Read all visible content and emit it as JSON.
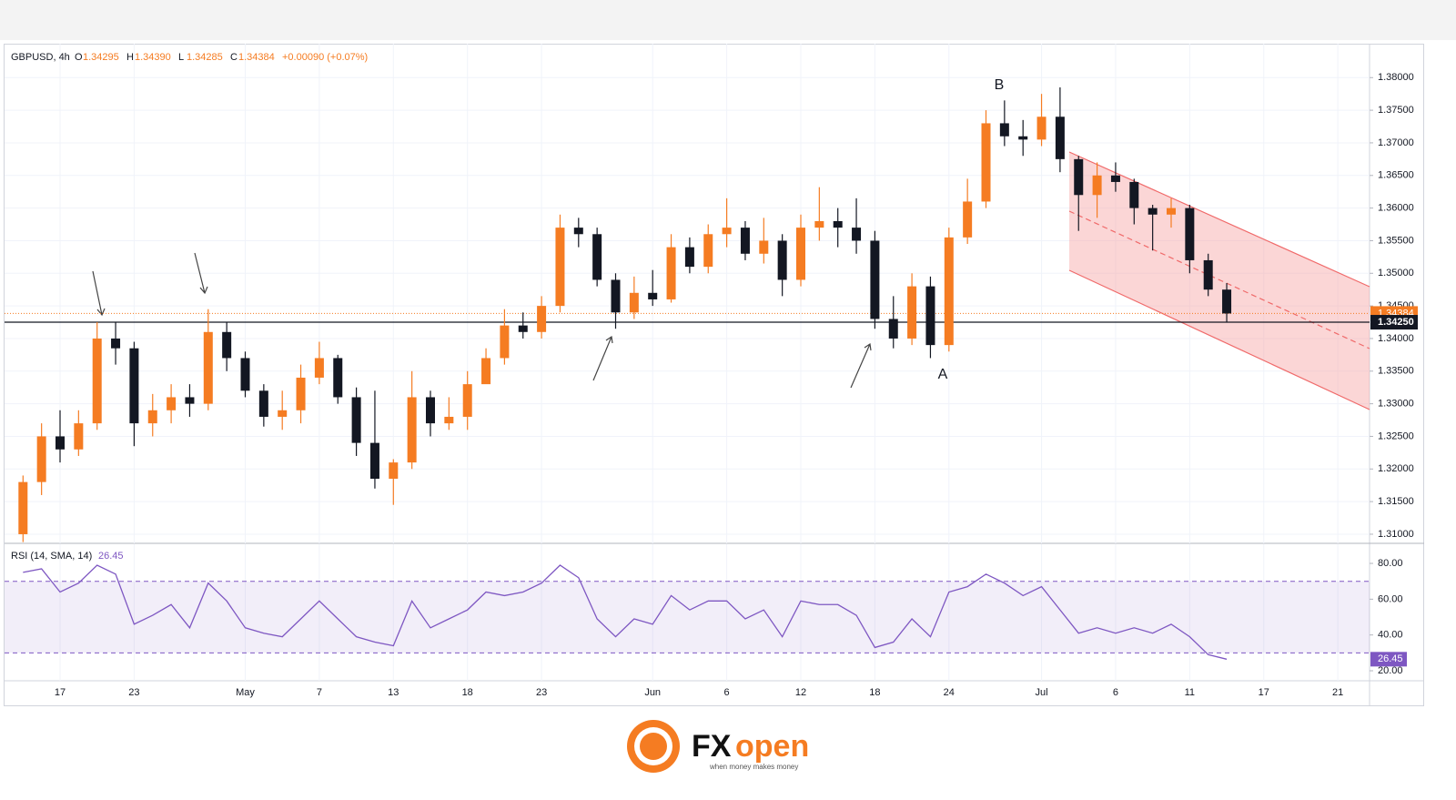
{
  "chart_data": {
    "type": "candlestick",
    "title": "GBPUSD, 4h",
    "ohlc_header": [
      {
        "name": "O",
        "value": "1.34295"
      },
      {
        "name": "H",
        "value": "1.34390"
      },
      {
        "name": "L",
        "value": "1.34285"
      },
      {
        "name": "C",
        "value": "1.34384"
      }
    ],
    "change": "+0.00090 (+0.07%)",
    "annotations": [
      "A",
      "B"
    ],
    "categories": [
      null,
      null,
      "17",
      null,
      null,
      null,
      "23",
      null,
      null,
      null,
      null,
      null,
      "May",
      null,
      null,
      null,
      "7",
      null,
      null,
      null,
      "13",
      null,
      null,
      null,
      "18",
      null,
      null,
      null,
      "23",
      null,
      null,
      null,
      null,
      null,
      "Jun",
      null,
      null,
      null,
      "6",
      null,
      null,
      null,
      "12",
      null,
      null,
      null,
      "18",
      null,
      null,
      null,
      "24",
      null,
      null,
      null,
      null,
      "Jul",
      null,
      null,
      null,
      "6",
      null,
      null,
      null,
      "11",
      null,
      null,
      null,
      "17",
      null,
      null,
      null,
      "21"
    ],
    "open": [
      1.31,
      1.318,
      1.325,
      1.323,
      1.327,
      1.34,
      1.3385,
      1.327,
      1.329,
      1.331,
      1.33,
      1.341,
      1.337,
      1.332,
      1.328,
      1.329,
      1.334,
      1.337,
      1.331,
      1.324,
      1.3185,
      1.321,
      1.331,
      1.327,
      1.328,
      1.333,
      1.337,
      1.342,
      1.341,
      1.345,
      1.357,
      1.356,
      1.349,
      1.344,
      1.347,
      1.346,
      1.354,
      1.351,
      1.356,
      1.357,
      1.353,
      1.355,
      1.349,
      1.357,
      1.358,
      1.357,
      1.355,
      1.343,
      1.34,
      1.348,
      1.339,
      1.3555,
      1.361,
      1.373,
      1.371,
      1.3705,
      1.374,
      1.3675,
      1.362,
      1.365,
      1.364,
      1.36,
      1.359,
      1.36,
      1.352,
      1.3475,
      null,
      null,
      null,
      null,
      null,
      null
    ],
    "high": [
      1.319,
      1.327,
      1.329,
      1.329,
      1.3425,
      1.3425,
      1.3395,
      1.3315,
      1.333,
      1.333,
      1.3445,
      1.3425,
      1.338,
      1.333,
      1.332,
      1.336,
      1.3395,
      1.3375,
      1.3325,
      1.332,
      1.3215,
      1.335,
      1.332,
      1.331,
      1.335,
      1.3385,
      1.3445,
      1.344,
      1.3465,
      1.359,
      1.3585,
      1.357,
      1.35,
      1.3495,
      1.3505,
      1.356,
      1.3555,
      1.3575,
      1.3615,
      1.358,
      1.3585,
      1.356,
      1.359,
      1.3632,
      1.36,
      1.3615,
      1.3565,
      1.3465,
      1.35,
      1.3495,
      1.357,
      1.3645,
      1.375,
      1.3765,
      1.3735,
      1.3775,
      1.3785,
      1.368,
      1.367,
      1.367,
      1.3645,
      1.3605,
      1.3615,
      1.3605,
      1.353,
      1.3485,
      null,
      null,
      null,
      null,
      null,
      null
    ],
    "low": [
      1.3088,
      1.316,
      1.321,
      1.322,
      1.326,
      1.336,
      1.3235,
      1.325,
      1.327,
      1.328,
      1.329,
      1.335,
      1.331,
      1.3265,
      1.326,
      1.327,
      1.333,
      1.33,
      1.322,
      1.317,
      1.3145,
      1.32,
      1.325,
      1.326,
      1.326,
      1.3335,
      1.336,
      1.34,
      1.34,
      1.344,
      1.354,
      1.348,
      1.3415,
      1.343,
      1.345,
      1.3455,
      1.35,
      1.35,
      1.354,
      1.352,
      1.3515,
      1.3465,
      1.348,
      1.355,
      1.354,
      1.353,
      1.3415,
      1.3385,
      1.339,
      1.337,
      1.338,
      1.3545,
      1.36,
      1.3695,
      1.368,
      1.3695,
      1.3655,
      1.3565,
      1.3585,
      1.3625,
      1.3575,
      1.3535,
      1.357,
      1.35,
      1.3465,
      1.3425,
      null,
      null,
      null,
      null,
      null,
      null
    ],
    "close": [
      1.318,
      1.325,
      1.323,
      1.327,
      1.34,
      1.3385,
      1.327,
      1.329,
      1.331,
      1.33,
      1.341,
      1.337,
      1.332,
      1.328,
      1.329,
      1.334,
      1.337,
      1.331,
      1.324,
      1.3185,
      1.321,
      1.331,
      1.327,
      1.328,
      1.333,
      1.337,
      1.342,
      1.341,
      1.345,
      1.357,
      1.356,
      1.349,
      1.344,
      1.347,
      1.346,
      1.354,
      1.351,
      1.356,
      1.357,
      1.353,
      1.355,
      1.349,
      1.357,
      1.358,
      1.357,
      1.355,
      1.343,
      1.34,
      1.348,
      1.339,
      1.3555,
      1.361,
      1.373,
      1.371,
      1.3705,
      1.374,
      1.3675,
      1.362,
      1.365,
      1.364,
      1.36,
      1.359,
      1.36,
      1.352,
      1.3475,
      1.34384,
      null,
      null,
      null,
      null,
      null,
      null
    ],
    "up_color": "#f57c22",
    "down_color": "#131722",
    "ylim": [
      1.3086,
      1.3852
    ],
    "yticks": [
      {
        "value": 1.31,
        "label": "1.31000"
      },
      {
        "value": 1.315,
        "label": "1.31500"
      },
      {
        "value": 1.32,
        "label": "1.32000"
      },
      {
        "value": 1.325,
        "label": "1.32500"
      },
      {
        "value": 1.33,
        "label": "1.33000"
      },
      {
        "value": 1.335,
        "label": "1.33500"
      },
      {
        "value": 1.34,
        "label": "1.34000"
      },
      {
        "value": 1.345,
        "label": "1.34500"
      },
      {
        "value": 1.35,
        "label": "1.35000"
      },
      {
        "value": 1.355,
        "label": "1.35500"
      },
      {
        "value": 1.36,
        "label": "1.36000"
      },
      {
        "value": 1.365,
        "label": "1.36500"
      },
      {
        "value": 1.37,
        "label": "1.37000"
      },
      {
        "value": 1.375,
        "label": "1.37500"
      },
      {
        "value": 1.38,
        "label": "1.38000"
      }
    ],
    "grid": true,
    "last_price": 1.34384,
    "support": {
      "value": 1.3425,
      "label": "1.34250"
    },
    "rsi": {
      "name": "RSI (14, SMA, 14)",
      "color": "#7e57c2",
      "values": [
        75,
        77,
        64,
        69,
        79,
        74,
        46,
        51,
        57,
        44,
        69,
        59,
        44,
        41,
        39,
        49,
        59,
        49,
        39,
        36,
        34,
        59,
        44,
        49,
        54,
        64,
        62,
        64,
        69,
        79,
        72,
        49,
        39,
        49,
        46,
        62,
        54,
        59,
        59,
        49,
        54,
        39,
        59,
        57,
        57,
        51,
        33,
        36,
        49,
        39,
        64,
        67,
        74,
        69,
        62,
        67,
        54,
        41,
        44,
        41,
        44,
        41,
        46,
        39,
        29,
        26.45,
        null,
        null,
        null,
        null,
        null,
        null
      ],
      "ylim": [
        14.4,
        90.7
      ],
      "yticks": [
        {
          "value": 20,
          "label": "20.00"
        },
        {
          "value": 40,
          "label": "40.00"
        },
        {
          "value": 60,
          "label": "60.00"
        },
        {
          "value": 80,
          "label": "80.00"
        }
      ],
      "bands": [
        30,
        70
      ]
    },
    "brand": {
      "name_fx": "FX",
      "name_open": "open",
      "tagline": "when money makes money"
    }
  }
}
